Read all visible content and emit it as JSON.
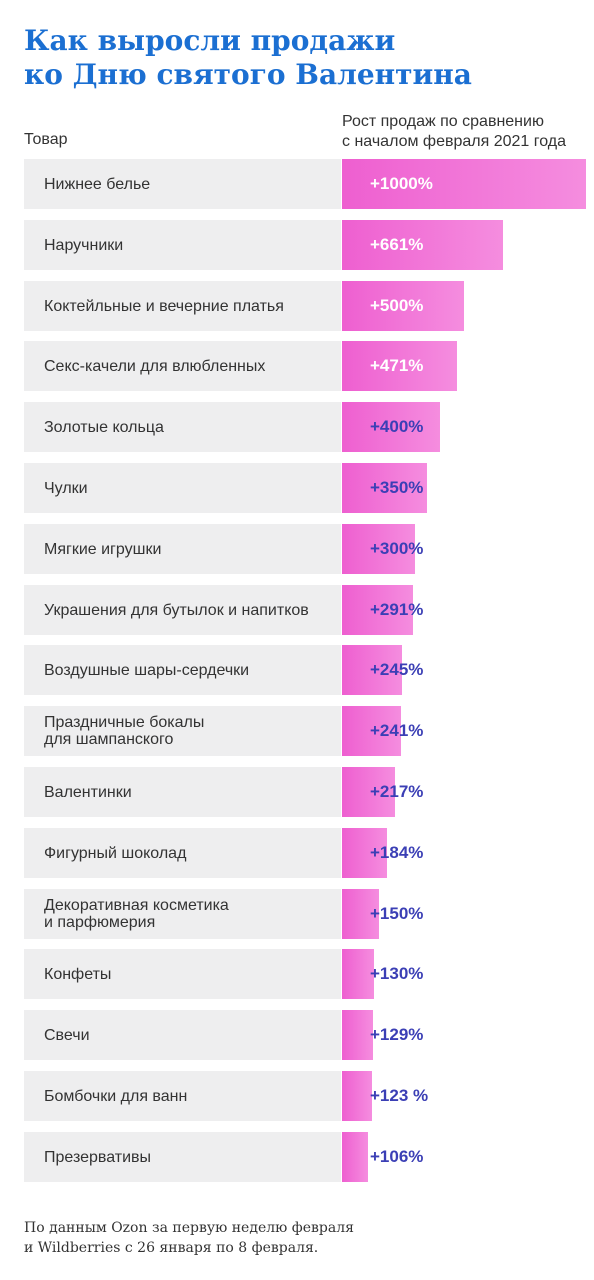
{
  "title": {
    "line1": "Как выросли продажи",
    "line2": "ко Дню святого Валентина"
  },
  "footnote": {
    "line1": "По данным Ozon за первую неделю февраля",
    "line2": "и Wildberries с 26 января по 8 февраля."
  },
  "colors": {
    "title": "#1b6fd2",
    "bar": "#ee5fd0",
    "value_text": "#3b3fb5",
    "row_background": "#eeeeef"
  },
  "chart_data": {
    "type": "bar",
    "orientation": "horizontal",
    "category_header": "Товар",
    "value_header": [
      "Рост продаж по сравнению",
      "с началом февраля 2021 года"
    ],
    "unit": "%",
    "rows": [
      {
        "label": [
          "Нижнее белье"
        ],
        "value": 1000,
        "text": "+1000%"
      },
      {
        "label": [
          "Наручники"
        ],
        "value": 661,
        "text": "+661%"
      },
      {
        "label": [
          "Коктейльные и вечерние платья"
        ],
        "value": 500,
        "text": "+500%"
      },
      {
        "label": [
          "Секс-качели для влюбленных"
        ],
        "value": 471,
        "text": "+471%"
      },
      {
        "label": [
          "Золотые кольца"
        ],
        "value": 400,
        "text": "+400%"
      },
      {
        "label": [
          "Чулки"
        ],
        "value": 350,
        "text": "+350%"
      },
      {
        "label": [
          "Мягкие игрушки"
        ],
        "value": 300,
        "text": "+300%"
      },
      {
        "label": [
          "Украшения для бутылок и напитков"
        ],
        "value": 291,
        "text": "+291%"
      },
      {
        "label": [
          "Воздушные шары-сердечки"
        ],
        "value": 245,
        "text": "+245%"
      },
      {
        "label": [
          "Праздничные бокалы",
          "для шампанского"
        ],
        "value": 241,
        "text": "+241%"
      },
      {
        "label": [
          "Валентинки"
        ],
        "value": 217,
        "text": "+217%"
      },
      {
        "label": [
          "Фигурный шоколад"
        ],
        "value": 184,
        "text": "+184%"
      },
      {
        "label": [
          "Декоративная косметика",
          "и парфюмерия"
        ],
        "value": 150,
        "text": "+150%"
      },
      {
        "label": [
          "Конфеты"
        ],
        "value": 130,
        "text": "+130%"
      },
      {
        "label": [
          "Свечи"
        ],
        "value": 129,
        "text": "+129%"
      },
      {
        "label": [
          "Бомбочки для ванн"
        ],
        "value": 123,
        "text": "+123 %"
      },
      {
        "label": [
          "Презервативы"
        ],
        "value": 106,
        "text": "+106%"
      }
    ]
  }
}
